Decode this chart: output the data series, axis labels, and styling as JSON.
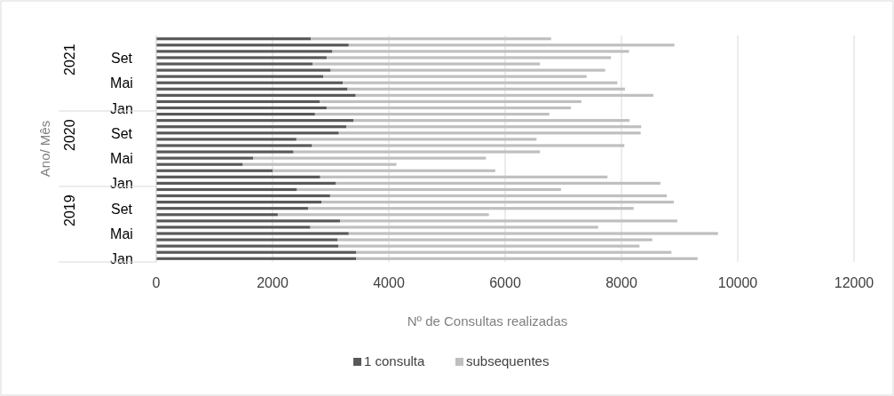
{
  "chart_data": {
    "type": "bar",
    "orientation": "horizontal",
    "stacked": true,
    "categories": [
      null,
      null,
      null,
      "Set",
      null,
      null,
      null,
      "Mai",
      null,
      null,
      null,
      "Jan",
      null,
      null,
      null,
      "Set",
      null,
      null,
      null,
      "Mai",
      null,
      null,
      null,
      "Jan",
      null,
      null,
      null,
      "Set",
      null,
      null,
      null,
      "Mai",
      null,
      null,
      null,
      "Jan"
    ],
    "series": [
      {
        "name": "1 consulta",
        "color": "#595959",
        "values": [
          2660,
          3310,
          3030,
          2930,
          2690,
          3000,
          2870,
          3210,
          3290,
          3430,
          2810,
          2930,
          2730,
          3390,
          3270,
          3140,
          2410,
          2680,
          2360,
          1670,
          1490,
          2000,
          2820,
          3090,
          2420,
          2990,
          2840,
          2610,
          2090,
          3160,
          2650,
          3310,
          3120,
          3130,
          3440,
          3440
        ]
      },
      {
        "name": "subsequentes",
        "color": "#bfbfbf",
        "values": [
          4130,
          5600,
          5100,
          4890,
          3910,
          4720,
          4530,
          4720,
          4770,
          5120,
          4500,
          4200,
          4030,
          4750,
          5070,
          5190,
          4130,
          5370,
          4240,
          4000,
          2640,
          3830,
          4940,
          5580,
          4540,
          5790,
          6060,
          5600,
          3630,
          5800,
          4950,
          6350,
          5410,
          5180,
          5420,
          5870
        ]
      }
    ],
    "xlim": [
      0,
      12000
    ],
    "xticks": [
      0,
      2000,
      4000,
      6000,
      8000,
      10000,
      12000
    ],
    "grid": "x",
    "xlabel": "Nº de Consultas realizadas",
    "ylabel": "Ano/ Mês",
    "legend": "bottom",
    "annotations": [
      "2021",
      "2020",
      "2019"
    ]
  }
}
